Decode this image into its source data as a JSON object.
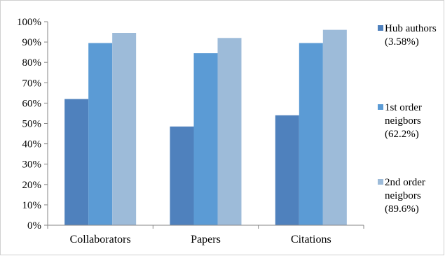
{
  "chart_data": {
    "type": "bar",
    "title": "",
    "xlabel": "",
    "ylabel": "",
    "categories": [
      "Collaborators",
      "Papers",
      "Citations"
    ],
    "ylim": [
      0,
      100
    ],
    "y_ticks": [
      "0%",
      "10%",
      "20%",
      "30%",
      "40%",
      "50%",
      "60%",
      "70%",
      "80%",
      "90%",
      "100%"
    ],
    "y_unit": "%",
    "grid": false,
    "legend_position": "right",
    "series": [
      {
        "name_lines": [
          "Hub authors",
          "(3.58%)"
        ],
        "values": [
          62,
          48.5,
          54
        ],
        "color": "#4f81bd"
      },
      {
        "name_lines": [
          "1st order",
          "neigbors",
          "(62.2%)"
        ],
        "values": [
          89.5,
          84.5,
          89.5
        ],
        "color": "#5b9bd5"
      },
      {
        "name_lines": [
          "2nd order",
          "neigbors",
          "(89.6%)"
        ],
        "values": [
          94.5,
          92,
          96
        ],
        "color": "#9dbbd9"
      }
    ]
  }
}
